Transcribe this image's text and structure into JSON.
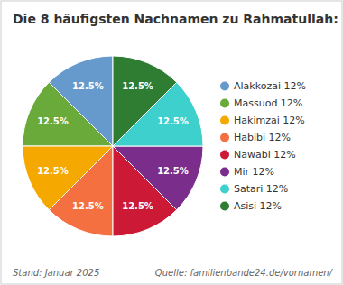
{
  "chart_data": {
    "type": "pie",
    "title": "Die 8 häufigsten Nachnamen zu Rahmatullah:",
    "categories": [
      "Alakkozai 12%",
      "Massuod 12%",
      "Hakimzai 12%",
      "Habibi 12%",
      "Nawabi 12%",
      "Mir 12%",
      "Satari 12%",
      "Asisi 12%"
    ],
    "values": [
      12.5,
      12.5,
      12.5,
      12.5,
      12.5,
      12.5,
      12.5,
      12.5
    ],
    "value_labels": [
      "12.5%",
      "12.5%",
      "12.5%",
      "12.5%",
      "12.5%",
      "12.5%",
      "12.5%",
      "12.5%"
    ],
    "data_labels": true,
    "colors": [
      "#6699cc",
      "#6aaa3a",
      "#f5a800",
      "#f47040",
      "#cc1a36",
      "#7b2d8b",
      "#3dd0cc",
      "#2e7d32"
    ],
    "legend": "right",
    "annotations": [
      "Stand: Januar 2025",
      "Quelle: familienbande24.de/vornamen/"
    ]
  }
}
